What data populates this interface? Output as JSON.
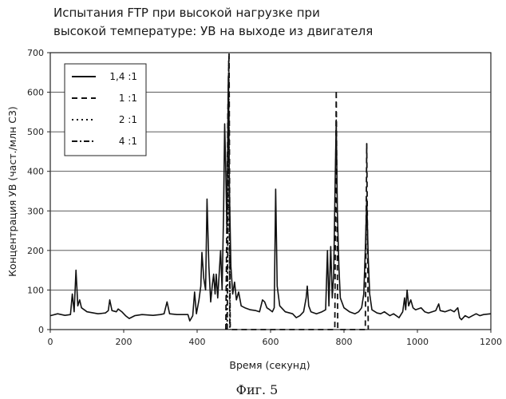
{
  "chart_data": {
    "type": "line",
    "title_lines": [
      "Испытания FTP при высокой нагрузке при",
      "высокой температуре: УВ на выходе из двигателя"
    ],
    "xlabel": "Время (секунд)",
    "ylabel": "Концентрация УВ (част./млн С3)",
    "xlim": [
      0,
      1200
    ],
    "ylim": [
      0,
      700
    ],
    "x_ticks": [
      0,
      200,
      400,
      600,
      800,
      1000,
      1200
    ],
    "y_ticks": [
      0,
      100,
      200,
      300,
      400,
      500,
      600,
      700
    ],
    "grid": "horizontal",
    "legend_position": "top-left",
    "caption": "Фиг. 5",
    "series": [
      {
        "name": "1,4 :1",
        "style": "solid",
        "color": "#111111",
        "points": [
          [
            0,
            35
          ],
          [
            20,
            40
          ],
          [
            40,
            36
          ],
          [
            55,
            38
          ],
          [
            60,
            90
          ],
          [
            65,
            45
          ],
          [
            70,
            150
          ],
          [
            75,
            60
          ],
          [
            80,
            75
          ],
          [
            85,
            55
          ],
          [
            100,
            45
          ],
          [
            130,
            40
          ],
          [
            150,
            42
          ],
          [
            158,
            48
          ],
          [
            162,
            75
          ],
          [
            168,
            48
          ],
          [
            180,
            45
          ],
          [
            185,
            52
          ],
          [
            195,
            45
          ],
          [
            205,
            35
          ],
          [
            215,
            28
          ],
          [
            230,
            35
          ],
          [
            250,
            38
          ],
          [
            280,
            36
          ],
          [
            300,
            38
          ],
          [
            310,
            40
          ],
          [
            318,
            70
          ],
          [
            325,
            40
          ],
          [
            345,
            38
          ],
          [
            360,
            38
          ],
          [
            375,
            38
          ],
          [
            380,
            22
          ],
          [
            388,
            35
          ],
          [
            393,
            95
          ],
          [
            398,
            40
          ],
          [
            405,
            75
          ],
          [
            410,
            110
          ],
          [
            413,
            195
          ],
          [
            418,
            130
          ],
          [
            423,
            100
          ],
          [
            427,
            330
          ],
          [
            432,
            160
          ],
          [
            437,
            70
          ],
          [
            441,
            110
          ],
          [
            445,
            140
          ],
          [
            449,
            90
          ],
          [
            452,
            140
          ],
          [
            456,
            80
          ],
          [
            460,
            140
          ],
          [
            464,
            200
          ],
          [
            468,
            100
          ],
          [
            472,
            290
          ],
          [
            475,
            520
          ],
          [
            478,
            400
          ],
          [
            481,
            250
          ],
          [
            485,
            640
          ],
          [
            488,
            350
          ],
          [
            492,
            160
          ],
          [
            497,
            90
          ],
          [
            502,
            120
          ],
          [
            507,
            75
          ],
          [
            513,
            95
          ],
          [
            520,
            60
          ],
          [
            530,
            55
          ],
          [
            545,
            50
          ],
          [
            560,
            48
          ],
          [
            570,
            45
          ],
          [
            578,
            75
          ],
          [
            584,
            70
          ],
          [
            590,
            55
          ],
          [
            598,
            50
          ],
          [
            605,
            45
          ],
          [
            610,
            55
          ],
          [
            614,
            355
          ],
          [
            618,
            110
          ],
          [
            625,
            60
          ],
          [
            640,
            45
          ],
          [
            660,
            40
          ],
          [
            670,
            30
          ],
          [
            680,
            35
          ],
          [
            690,
            45
          ],
          [
            697,
            80
          ],
          [
            700,
            110
          ],
          [
            704,
            60
          ],
          [
            710,
            45
          ],
          [
            725,
            40
          ],
          [
            740,
            45
          ],
          [
            750,
            50
          ],
          [
            755,
            200
          ],
          [
            759,
            60
          ],
          [
            764,
            210
          ],
          [
            768,
            80
          ],
          [
            772,
            140
          ],
          [
            776,
            380
          ],
          [
            779,
            530
          ],
          [
            782,
            300
          ],
          [
            786,
            160
          ],
          [
            790,
            80
          ],
          [
            800,
            55
          ],
          [
            815,
            45
          ],
          [
            830,
            40
          ],
          [
            840,
            45
          ],
          [
            848,
            55
          ],
          [
            854,
            90
          ],
          [
            858,
            200
          ],
          [
            862,
            330
          ],
          [
            866,
            180
          ],
          [
            870,
            90
          ],
          [
            876,
            50
          ],
          [
            890,
            42
          ],
          [
            900,
            40
          ],
          [
            910,
            45
          ],
          [
            925,
            35
          ],
          [
            935,
            40
          ],
          [
            950,
            30
          ],
          [
            960,
            45
          ],
          [
            965,
            80
          ],
          [
            968,
            50
          ],
          [
            972,
            100
          ],
          [
            976,
            60
          ],
          [
            982,
            75
          ],
          [
            988,
            55
          ],
          [
            995,
            50
          ],
          [
            1010,
            55
          ],
          [
            1020,
            45
          ],
          [
            1030,
            42
          ],
          [
            1040,
            45
          ],
          [
            1050,
            48
          ],
          [
            1058,
            65
          ],
          [
            1062,
            48
          ],
          [
            1075,
            45
          ],
          [
            1090,
            50
          ],
          [
            1100,
            45
          ],
          [
            1110,
            55
          ],
          [
            1115,
            30
          ],
          [
            1120,
            25
          ],
          [
            1130,
            35
          ],
          [
            1140,
            30
          ],
          [
            1150,
            35
          ],
          [
            1160,
            40
          ],
          [
            1170,
            35
          ],
          [
            1180,
            38
          ],
          [
            1200,
            40
          ]
        ]
      },
      {
        "name": "1 :1",
        "style": "dash",
        "color": "#111111",
        "points": [
          [
            478,
            0
          ],
          [
            484,
            560
          ],
          [
            487,
            700
          ],
          [
            490,
            0
          ],
          [
            775,
            0
          ],
          [
            779,
            605
          ],
          [
            783,
            0
          ],
          [
            858,
            0
          ],
          [
            862,
            470
          ],
          [
            866,
            0
          ]
        ]
      },
      {
        "name": "2 :1",
        "style": "dot",
        "color": "#111111",
        "points": [
          [
            480,
            0
          ],
          [
            485,
            600
          ],
          [
            490,
            0
          ]
        ]
      },
      {
        "name": "4 :1",
        "style": "dashdot",
        "color": "#111111",
        "points": [
          [
            482,
            0
          ],
          [
            486,
            680
          ],
          [
            489,
            0
          ]
        ]
      }
    ]
  }
}
